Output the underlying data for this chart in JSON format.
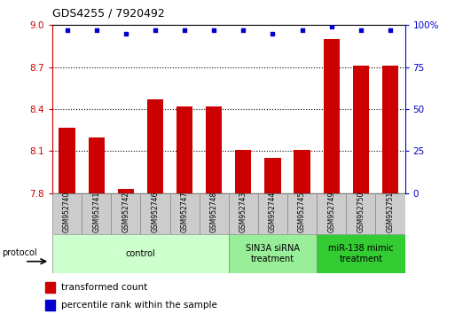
{
  "title": "GDS4255 / 7920492",
  "samples": [
    "GSM952740",
    "GSM952741",
    "GSM952742",
    "GSM952746",
    "GSM952747",
    "GSM952748",
    "GSM952743",
    "GSM952744",
    "GSM952745",
    "GSM952749",
    "GSM952750",
    "GSM952751"
  ],
  "bar_values": [
    8.27,
    8.2,
    7.83,
    8.47,
    8.42,
    8.42,
    8.11,
    8.05,
    8.11,
    8.9,
    8.71,
    8.71
  ],
  "percentile_values": [
    97,
    97,
    95,
    97,
    97,
    97,
    97,
    95,
    97,
    99,
    97,
    97
  ],
  "bar_color": "#cc0000",
  "dot_color": "#0000cc",
  "ylim_left": [
    7.8,
    9.0
  ],
  "ylim_right": [
    0,
    100
  ],
  "yticks_left": [
    7.8,
    8.1,
    8.4,
    8.7,
    9.0
  ],
  "yticks_right": [
    0,
    25,
    50,
    75,
    100
  ],
  "groups": [
    {
      "label": "control",
      "start": 0,
      "end": 6,
      "color": "#ccffcc"
    },
    {
      "label": "SIN3A siRNA\ntreatment",
      "start": 6,
      "end": 9,
      "color": "#99ee99"
    },
    {
      "label": "miR-138 mimic\ntreatment",
      "start": 9,
      "end": 12,
      "color": "#33cc33"
    }
  ],
  "protocol_label": "protocol",
  "legend_bar_label": "transformed count",
  "legend_dot_label": "percentile rank within the sample",
  "sample_box_color": "#cccccc",
  "sample_box_edge": "#888888"
}
